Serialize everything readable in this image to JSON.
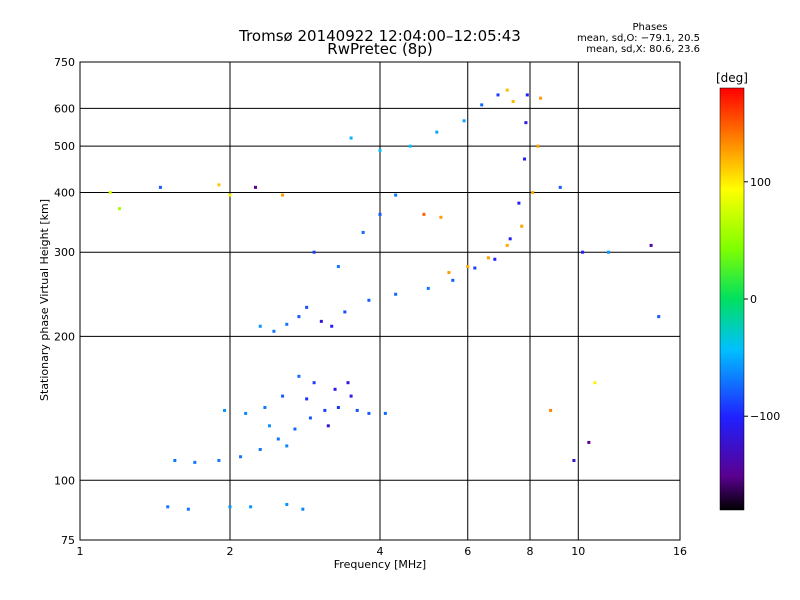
{
  "header": {
    "title_line1": "Tromsø 20140922 12:04:00–12:05:43",
    "title_line2": "RwPretec (8p)",
    "stats_heading": "Phases",
    "stats_o": "mean, sd,O: −79.1, 20.5",
    "stats_x": "mean, sd,X:  80.6, 23.6"
  },
  "colorbar": {
    "label": "[deg]",
    "ticks": [
      {
        "value": 100,
        "label": "100"
      },
      {
        "value": 0,
        "label": "0"
      },
      {
        "value": -100,
        "label": "−100"
      }
    ],
    "range": [
      -180,
      180
    ]
  },
  "chart_data": {
    "type": "scatter",
    "title": "Tromsø 20140922 12:04:00–12:05:43",
    "subtitle": "RwPretec (8p)",
    "xlabel": "Frequency [MHz]",
    "ylabel": "Stationary phase Virtual Height [km]",
    "x_scale": "log",
    "y_scale": "log",
    "xlim": [
      1,
      16
    ],
    "ylim": [
      75,
      750
    ],
    "x_ticks": [
      1,
      2,
      4,
      6,
      8,
      10,
      16
    ],
    "y_ticks": [
      75,
      100,
      200,
      300,
      400,
      500,
      600,
      750
    ],
    "grid_x": [
      2,
      4,
      6,
      8,
      10
    ],
    "grid_y": [
      100,
      200,
      300,
      400,
      500,
      600
    ],
    "series": [
      {
        "points": [
          [
            1.55,
            110,
            -70
          ],
          [
            1.7,
            109,
            -70
          ],
          [
            1.9,
            110,
            -70
          ],
          [
            2.1,
            112,
            -70
          ],
          [
            2.3,
            116,
            -70
          ],
          [
            2.5,
            122,
            -70
          ],
          [
            2.7,
            128,
            -75
          ],
          [
            2.9,
            135,
            -80
          ],
          [
            3.1,
            140,
            -90
          ],
          [
            3.3,
            142,
            -95
          ],
          [
            3.6,
            140,
            -85
          ],
          [
            4.1,
            138,
            -75
          ],
          [
            1.95,
            140,
            -60
          ],
          [
            2.15,
            138,
            -65
          ],
          [
            2.35,
            142,
            -70
          ],
          [
            2.55,
            150,
            -80
          ],
          [
            2.75,
            165,
            -75
          ],
          [
            2.95,
            160,
            -90
          ],
          [
            3.25,
            155,
            -110
          ],
          [
            3.45,
            160,
            -115
          ],
          [
            2.4,
            130,
            -60
          ],
          [
            2.6,
            118,
            -65
          ],
          [
            2.85,
            148,
            -95
          ],
          [
            3.15,
            130,
            -120
          ],
          [
            3.5,
            150,
            -110
          ],
          [
            3.8,
            138,
            -80
          ],
          [
            2.3,
            210,
            -60
          ],
          [
            2.45,
            205,
            -70
          ],
          [
            2.6,
            212,
            -70
          ],
          [
            2.75,
            220,
            -80
          ],
          [
            2.85,
            230,
            -85
          ],
          [
            2.95,
            300,
            -90
          ],
          [
            3.05,
            215,
            -120
          ],
          [
            3.2,
            210,
            -100
          ],
          [
            3.4,
            225,
            -85
          ],
          [
            3.8,
            238,
            -80
          ],
          [
            4.3,
            245,
            -75
          ],
          [
            5.0,
            252,
            -70
          ],
          [
            5.6,
            262,
            -80
          ],
          [
            6.2,
            278,
            -90
          ],
          [
            6.8,
            290,
            -100
          ],
          [
            7.3,
            320,
            -105
          ],
          [
            7.6,
            380,
            -105
          ],
          [
            7.8,
            470,
            -105
          ],
          [
            7.85,
            560,
            -110
          ],
          [
            7.9,
            640,
            -105
          ],
          [
            5.5,
            272,
            130
          ],
          [
            6.0,
            280,
            125
          ],
          [
            6.6,
            292,
            130
          ],
          [
            7.2,
            310,
            125
          ],
          [
            7.7,
            340,
            128
          ],
          [
            8.1,
            400,
            125
          ],
          [
            8.3,
            500,
            130
          ],
          [
            8.4,
            630,
            130
          ],
          [
            3.3,
            280,
            -70
          ],
          [
            3.7,
            330,
            -75
          ],
          [
            4.0,
            360,
            -80
          ],
          [
            4.3,
            395,
            -70
          ],
          [
            3.5,
            520,
            -50
          ],
          [
            4.0,
            490,
            -45
          ],
          [
            4.6,
            500,
            -45
          ],
          [
            5.2,
            535,
            -55
          ],
          [
            5.9,
            565,
            -55
          ],
          [
            6.4,
            610,
            -75
          ],
          [
            6.9,
            640,
            -90
          ],
          [
            7.2,
            655,
            120
          ],
          [
            7.4,
            620,
            120
          ],
          [
            1.5,
            88,
            -70
          ],
          [
            1.65,
            87,
            -70
          ],
          [
            2.0,
            88,
            -60
          ],
          [
            2.2,
            88,
            -60
          ],
          [
            2.6,
            89,
            -60
          ],
          [
            2.8,
            87,
            -65
          ],
          [
            1.15,
            400,
            80
          ],
          [
            1.2,
            370,
            60
          ],
          [
            1.45,
            410,
            -80
          ],
          [
            1.9,
            415,
            115
          ],
          [
            2.0,
            395,
            100
          ],
          [
            2.25,
            410,
            -150
          ],
          [
            2.55,
            395,
            130
          ],
          [
            4.9,
            360,
            150
          ],
          [
            5.3,
            355,
            130
          ],
          [
            9.2,
            410,
            -80
          ],
          [
            10.2,
            300,
            -100
          ],
          [
            11.5,
            300,
            -60
          ],
          [
            14.0,
            310,
            -140
          ],
          [
            14.5,
            220,
            -80
          ],
          [
            8.8,
            140,
            140
          ],
          [
            10.5,
            120,
            -150
          ],
          [
            10.8,
            160,
            100
          ],
          [
            9.8,
            110,
            -120
          ]
        ]
      }
    ],
    "colorscale_deg": [
      -180,
      180
    ]
  }
}
